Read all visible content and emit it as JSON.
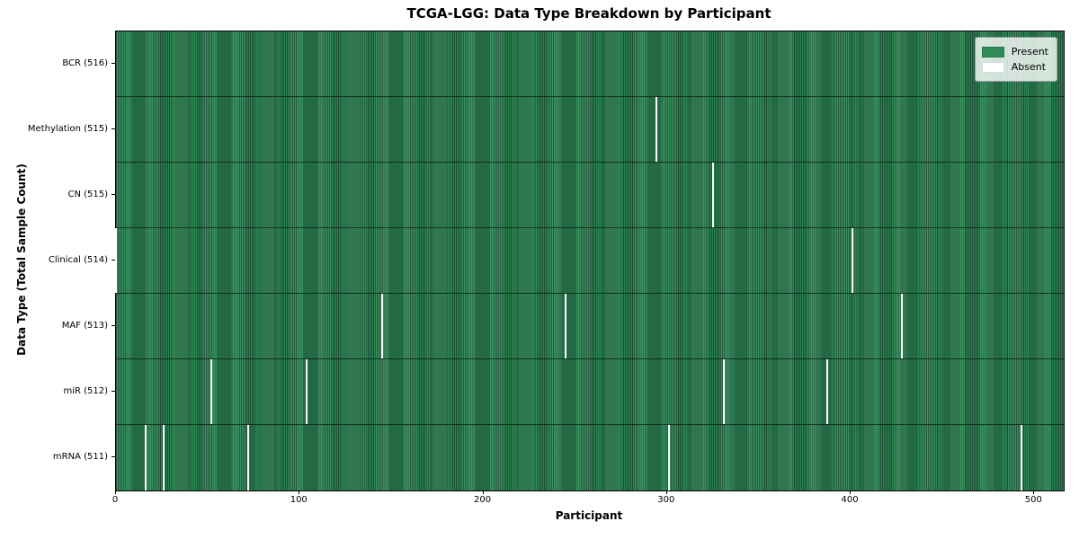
{
  "chart_data": {
    "type": "heatmap",
    "title": "TCGA-LGG: Data Type Breakdown by Participant",
    "xlabel": "Participant",
    "ylabel": "Data Type (Total Sample Count)",
    "x_ticks": [
      0,
      100,
      200,
      300,
      400,
      500
    ],
    "x_range": [
      0,
      516
    ],
    "n_participants": 516,
    "grid": false,
    "legend_position": "upper right",
    "legend": [
      {
        "label": "Present",
        "color": "#2e8b57"
      },
      {
        "label": "Absent",
        "color": "#ffffff"
      }
    ],
    "colors": {
      "present": "#2e8b57",
      "present_edge": "#1b5236",
      "absent": "#ffffff"
    },
    "rows": [
      {
        "label": "BCR (516)",
        "data_type": "BCR",
        "total_samples": 516,
        "absent_participants": []
      },
      {
        "label": "Methylation (515)",
        "data_type": "Methylation",
        "total_samples": 515,
        "absent_participants": [
          294
        ]
      },
      {
        "label": "CN (515)",
        "data_type": "CN",
        "total_samples": 515,
        "absent_participants": [
          325
        ]
      },
      {
        "label": "Clinical (514)",
        "data_type": "Clinical",
        "total_samples": 514,
        "absent_participants": [
          0,
          401
        ]
      },
      {
        "label": "MAF (513)",
        "data_type": "MAF",
        "total_samples": 513,
        "absent_participants": [
          145,
          245,
          428
        ]
      },
      {
        "label": "miR (512)",
        "data_type": "miR",
        "total_samples": 512,
        "absent_participants": [
          52,
          104,
          331,
          387
        ]
      },
      {
        "label": "mRNA (511)",
        "data_type": "mRNA",
        "total_samples": 511,
        "absent_participants": [
          16,
          26,
          72,
          301,
          493
        ]
      }
    ]
  }
}
